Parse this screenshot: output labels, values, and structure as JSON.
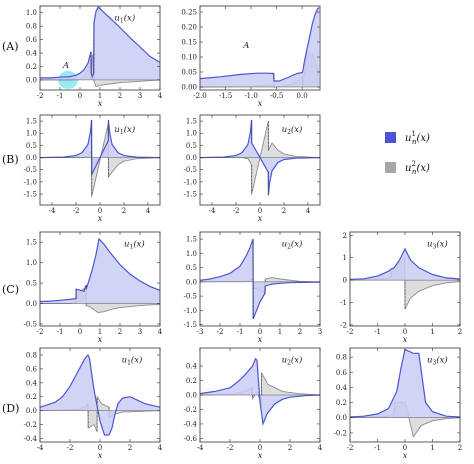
{
  "colors": {
    "blue_line": "#4b55d6",
    "blue_fill": "#c9cdf2",
    "gray_line": "#8c8c8c",
    "gray_fill": "#d9d9d9",
    "highlight": "#86e8f0"
  },
  "row_labels": [
    "(A)",
    "(B)",
    "(C)",
    "(D)"
  ],
  "legend": {
    "items": [
      {
        "label": "u_n^1(x)",
        "main": "u",
        "sup": "1",
        "sub": "n",
        "tail": "(x)",
        "color": "#4b55d6"
      },
      {
        "label": "u_n^2(x)",
        "main": "u",
        "sup": "2",
        "sub": "n",
        "tail": "(x)",
        "color": "#a6a6a6"
      }
    ]
  },
  "chart_data": [
    {
      "id": "A1",
      "type": "area",
      "label": "u1(x)",
      "annotation": "A",
      "xlabel": "x",
      "xlim": [
        -2,
        4
      ],
      "ylim": [
        -0.15,
        1.1
      ],
      "xticks": [
        -2,
        -1,
        0,
        1,
        2,
        3,
        4
      ],
      "yticks": [
        0.0,
        0.2,
        0.4,
        0.6,
        0.8,
        1.0
      ],
      "ytick_labels": [
        "0.0",
        "0.2",
        "0.4",
        "0.6",
        "0.8",
        "1.0"
      ],
      "highlight": {
        "x": -0.6,
        "y": 0.0,
        "label": "A"
      },
      "series": [
        {
          "name": "u_n^1(x)",
          "x": [
            -2,
            -1.5,
            -1,
            -0.5,
            -0.2,
            0,
            0.2,
            0.4,
            0.55,
            0.56,
            0.62,
            0.68,
            0.7,
            0.8,
            0.9,
            1.0,
            1.5,
            2,
            2.5,
            3,
            3.5,
            4
          ],
          "y": [
            0.03,
            0.03,
            0.04,
            0.05,
            0.07,
            0.1,
            0.15,
            0.25,
            0.42,
            0.1,
            0.05,
            0.1,
            0.85,
            1.02,
            1.08,
            1.06,
            0.92,
            0.78,
            0.63,
            0.49,
            0.35,
            0.26
          ]
        },
        {
          "name": "u_n^2(x)",
          "x": [
            -2,
            -0.5,
            0,
            0.2,
            0.4,
            0.55,
            0.56,
            0.62,
            0.68,
            0.7,
            0.8,
            1.0,
            1.5,
            2,
            3,
            4
          ],
          "y": [
            0,
            0,
            0.01,
            0.05,
            0.15,
            0.3,
            0.0,
            0.35,
            0.4,
            -0.02,
            -0.1,
            -0.08,
            -0.06,
            -0.04,
            -0.02,
            0
          ]
        }
      ]
    },
    {
      "id": "A2",
      "type": "area",
      "label": "",
      "annotation": "A",
      "xlabel": "x",
      "xlim": [
        -2,
        0.35
      ],
      "ylim": [
        -0.01,
        0.27
      ],
      "xticks": [
        -2.0,
        -1.5,
        -1.0,
        -0.5,
        0.0
      ],
      "xtick_labels": [
        "-2.0",
        "-1.5",
        "-1.0",
        "-0.5",
        "0.0"
      ],
      "yticks": [
        0,
        0.05,
        0.1,
        0.15,
        0.2,
        0.25
      ],
      "ytick_labels": [
        "0.00",
        "0.05",
        "0.10",
        "0.15",
        "0.20",
        "0.25"
      ],
      "series": [
        {
          "name": "u_n^1(x)",
          "x": [
            -2,
            -1.6,
            -1.2,
            -0.9,
            -0.7,
            -0.56,
            -0.55,
            -0.45,
            -0.3,
            -0.1,
            0.0,
            0.01,
            0.05,
            0.1,
            0.15,
            0.2,
            0.25,
            0.3,
            0.33
          ],
          "y": [
            0.028,
            0.034,
            0.042,
            0.046,
            0.046,
            0.045,
            0.02,
            0.02,
            0.03,
            0.045,
            0.048,
            0.05,
            0.09,
            0.13,
            0.17,
            0.21,
            0.24,
            0.26,
            0.265
          ]
        },
        {
          "name": "u_n^2(x)",
          "x": [
            -2,
            -1.0,
            -0.7,
            -0.56,
            -0.55,
            -0.3,
            -0.1,
            0.0,
            0.01,
            0.1,
            0.2,
            0.3,
            0.33
          ],
          "y": [
            0,
            0.002,
            0.005,
            0.008,
            0.0,
            0.005,
            0.015,
            0.035,
            0.0,
            0.12,
            0.11,
            0.06,
            0.05
          ]
        }
      ]
    },
    {
      "id": "B1",
      "type": "area",
      "label": "u1(x)",
      "xlabel": "x",
      "xlim": [
        -5,
        5
      ],
      "ylim": [
        -1.95,
        1.75
      ],
      "xticks": [
        -4,
        -2,
        0,
        2,
        4
      ],
      "yticks": [
        -1.5,
        -1.0,
        -0.5,
        0.0,
        0.5,
        1.0,
        1.5
      ],
      "ytick_labels": [
        "-1.5",
        "-1.0",
        "-0.5",
        "0.0",
        "0.5",
        "1.0",
        "1.5"
      ],
      "series": [
        {
          "name": "u_n^1(x)",
          "x": [
            -5,
            -3,
            -2,
            -1.5,
            -1,
            -0.8,
            -0.7,
            -0.69,
            0.69,
            0.7,
            0.8,
            1.0,
            1.5,
            2,
            3,
            5
          ],
          "y": [
            0,
            0.02,
            0.08,
            0.2,
            0.55,
            1.05,
            1.55,
            -0.7,
            0.7,
            1.55,
            1.05,
            0.55,
            0.2,
            0.08,
            0.02,
            0
          ]
        },
        {
          "name": "u_n^2(x)",
          "x": [
            -5,
            -1.5,
            -1.0,
            -0.7,
            -0.69,
            0.69,
            0.7,
            1.0,
            1.5,
            2,
            3,
            5
          ],
          "y": [
            0,
            0,
            0.05,
            0.3,
            -1.6,
            1.4,
            -0.8,
            -0.6,
            -0.3,
            -0.15,
            -0.05,
            0
          ]
        }
      ]
    },
    {
      "id": "B2",
      "type": "area",
      "label": "u2(x)",
      "xlabel": "x",
      "xlim": [
        -5,
        5
      ],
      "ylim": [
        -1.95,
        1.75
      ],
      "xticks": [
        -4,
        -2,
        0,
        2,
        4
      ],
      "yticks": [
        -1.5,
        -1.0,
        -0.5,
        0.0,
        0.5,
        1.0,
        1.5
      ],
      "ytick_labels": [
        "-1.5",
        "-1.0",
        "-0.5",
        "0.0",
        "0.5",
        "1.0",
        "1.5"
      ],
      "series": [
        {
          "name": "u_n^1(x)",
          "x": [
            -5,
            -3,
            -2,
            -1.5,
            -1,
            -0.8,
            -0.7,
            -0.69,
            0,
            0.69,
            0.7,
            0.8,
            1.0,
            1.5,
            2,
            3,
            5
          ],
          "y": [
            0,
            0.02,
            0.08,
            0.2,
            0.55,
            1.05,
            1.55,
            0.6,
            0,
            -0.6,
            -1.55,
            -1.05,
            -0.55,
            -0.2,
            -0.08,
            -0.02,
            0
          ]
        },
        {
          "name": "u_n^2(x)",
          "x": [
            -5,
            -1.5,
            -1.0,
            -0.7,
            -0.69,
            0,
            0.69,
            0.7,
            1.0,
            1.5,
            2,
            3,
            5
          ],
          "y": [
            0,
            0,
            -0.05,
            -0.3,
            -1.5,
            0,
            1.5,
            0.3,
            0.6,
            0.3,
            0.15,
            0.05,
            0
          ]
        }
      ]
    },
    {
      "id": "C1",
      "type": "area",
      "label": "u1(x)",
      "xlabel": "x",
      "xlim": [
        -2,
        4
      ],
      "ylim": [
        -0.55,
        1.75
      ],
      "xticks": [
        -2,
        -1,
        0,
        1,
        2,
        3,
        4
      ],
      "yticks": [
        -0.5,
        0.0,
        0.5,
        1.0,
        1.5
      ],
      "ytick_labels": [
        "-0.5",
        "0.0",
        "0.5",
        "1.0",
        "1.5"
      ],
      "series": [
        {
          "name": "u_n^1(x)",
          "x": [
            -2,
            -1.5,
            -1,
            -0.5,
            -0.2,
            -0.19,
            0.2,
            0.3,
            0.31,
            0.6,
            0.8,
            0.95,
            1.2,
            1.5,
            2,
            2.5,
            3,
            3.5,
            4
          ],
          "y": [
            0.05,
            0.06,
            0.08,
            0.1,
            0.12,
            0.35,
            0.3,
            0.45,
            0.35,
            0.8,
            1.2,
            1.58,
            1.45,
            1.25,
            0.95,
            0.72,
            0.55,
            0.42,
            0.32
          ]
        },
        {
          "name": "u_n^2(x)",
          "x": [
            -2,
            -0.5,
            -0.2,
            -0.19,
            0.0,
            0.3,
            0.31,
            0.5,
            0.7,
            0.9,
            1.2,
            1.6,
            2,
            3,
            4
          ],
          "y": [
            0,
            0,
            0.02,
            0.15,
            0.3,
            0.4,
            -0.05,
            -0.08,
            -0.15,
            -0.22,
            -0.2,
            -0.14,
            -0.1,
            -0.05,
            -0.02
          ]
        }
      ]
    },
    {
      "id": "C2",
      "type": "area",
      "label": "u2(x)",
      "xlabel": "x",
      "xlim": [
        -3,
        3
      ],
      "ylim": [
        -1.55,
        1.75
      ],
      "xticks": [
        -3,
        -2,
        -1,
        0,
        1,
        2,
        3
      ],
      "yticks": [
        -1.5,
        -1.0,
        -0.5,
        0.0,
        0.5,
        1.0,
        1.5
      ],
      "ytick_labels": [
        "-1.5",
        "-1.0",
        "-0.5",
        "0.0",
        "0.5",
        "1.0",
        "1.5"
      ],
      "series": [
        {
          "name": "u_n^1(x)",
          "x": [
            -3,
            -2.5,
            -2,
            -1.5,
            -1.0,
            -0.7,
            -0.5,
            -0.35,
            -0.34,
            0,
            0.25,
            0.26,
            0.6,
            1,
            1.5,
            2,
            3
          ],
          "y": [
            0.05,
            0.1,
            0.18,
            0.3,
            0.55,
            0.9,
            1.2,
            1.5,
            -1.3,
            -0.7,
            -0.4,
            -0.15,
            -0.08,
            -0.05,
            -0.03,
            -0.02,
            -0.01
          ]
        },
        {
          "name": "u_n^2(x)",
          "x": [
            -3,
            -1.0,
            -0.5,
            -0.35,
            -0.34,
            0,
            0.25,
            0.26,
            0.6,
            1,
            2,
            3
          ],
          "y": [
            0,
            0.01,
            0.05,
            0.1,
            -0.2,
            -0.3,
            -0.4,
            0.1,
            0.15,
            0.1,
            0.02,
            0
          ]
        }
      ]
    },
    {
      "id": "C3",
      "type": "area",
      "label": "u3(x)",
      "xlabel": "x",
      "xlim": [
        -2,
        2
      ],
      "ylim": [
        -2.05,
        2.15
      ],
      "xticks": [
        -2,
        -1,
        0,
        1,
        2
      ],
      "yticks": [
        -2,
        -1,
        0,
        1,
        2
      ],
      "ytick_labels": [
        "-2",
        "-1",
        "0",
        "1",
        "2"
      ],
      "series": [
        {
          "name": "u_n^1(x)",
          "x": [
            -2,
            -1.5,
            -1.0,
            -0.6,
            -0.5,
            -0.4,
            -0.2,
            0,
            0.2,
            0.5,
            1,
            1.5,
            2
          ],
          "y": [
            0.03,
            0.06,
            0.18,
            0.4,
            0.5,
            0.55,
            0.9,
            1.4,
            0.9,
            0.55,
            0.25,
            0.1,
            0.05
          ]
        },
        {
          "name": "u_n^2(x)",
          "x": [
            -2,
            -1.0,
            -0.6,
            -0.5,
            -0.49,
            -0.2,
            -0.01,
            0,
            0.2,
            0.5,
            1,
            1.5,
            2
          ],
          "y": [
            0,
            0.05,
            0.1,
            0.15,
            0.4,
            0.8,
            1.0,
            -1.3,
            -0.8,
            -0.5,
            -0.25,
            -0.12,
            -0.06
          ]
        }
      ]
    },
    {
      "id": "D1",
      "type": "area",
      "label": "u1(x)",
      "xlabel": "x",
      "xlim": [
        -4,
        4
      ],
      "ylim": [
        -0.45,
        0.9
      ],
      "xticks": [
        -4,
        -2,
        0,
        2,
        4
      ],
      "yticks": [
        -0.4,
        -0.2,
        0.0,
        0.2,
        0.4,
        0.6,
        0.8
      ],
      "ytick_labels": [
        "-0.4",
        "-0.2",
        "0.0",
        "0.2",
        "0.4",
        "0.6",
        "0.8"
      ],
      "series": [
        {
          "name": "u_n^1(x)",
          "x": [
            -4,
            -3,
            -2.5,
            -2,
            -1.5,
            -1.0,
            -0.8,
            -0.7,
            -0.4,
            0,
            0.3,
            0.6,
            0.8,
            1.0,
            1.2,
            1.5,
            2,
            2.5,
            3,
            4
          ],
          "y": [
            0.05,
            0.12,
            0.2,
            0.35,
            0.55,
            0.75,
            0.8,
            0.75,
            0.3,
            -0.15,
            -0.35,
            -0.35,
            -0.25,
            -0.05,
            0.1,
            0.18,
            0.2,
            0.15,
            0.1,
            0.05
          ]
        },
        {
          "name": "u_n^2(x)",
          "x": [
            -4,
            -1.5,
            -1.0,
            -0.8,
            -0.79,
            -0.4,
            -0.2,
            -0.19,
            0.1,
            0.6,
            0.61,
            1.0,
            1.5,
            2.5,
            4
          ],
          "y": [
            0,
            0.02,
            0.05,
            0.1,
            -0.25,
            -0.2,
            -0.3,
            0.2,
            0.1,
            0.05,
            -0.1,
            -0.05,
            -0.02,
            -0.01,
            0
          ]
        }
      ]
    },
    {
      "id": "D2",
      "type": "area",
      "label": "u2(x)",
      "xlabel": "x",
      "xlim": [
        -4,
        4
      ],
      "ylim": [
        -0.65,
        0.65
      ],
      "xticks": [
        -4,
        -2,
        0,
        2,
        4
      ],
      "yticks": [
        -0.6,
        -0.4,
        -0.2,
        0.0,
        0.2,
        0.4
      ],
      "ytick_labels": [
        "-0.6",
        "-0.4",
        "-0.2",
        "0.0",
        "0.2",
        "0.4"
      ],
      "series": [
        {
          "name": "u_n^1(x)",
          "x": [
            -4,
            -3,
            -2,
            -1.5,
            -1.0,
            -0.5,
            -0.3,
            -0.2,
            0,
            0.2,
            0.5,
            1.0,
            1.5,
            2,
            3,
            4
          ],
          "y": [
            0.02,
            0.05,
            0.1,
            0.18,
            0.28,
            0.4,
            0.5,
            0.48,
            -0.1,
            -0.4,
            -0.25,
            -0.12,
            -0.06,
            -0.03,
            -0.01,
            0
          ]
        },
        {
          "name": "u_n^2(x)",
          "x": [
            -4,
            -2,
            -1,
            -0.5,
            -0.49,
            -0.2,
            0.1,
            0.11,
            0.4,
            0.5,
            1.0,
            1.5,
            2.5,
            4
          ],
          "y": [
            0,
            0.01,
            0.05,
            0.1,
            -0.05,
            0.05,
            -0.15,
            0.3,
            0.2,
            0.15,
            0.1,
            0.05,
            0.02,
            0
          ]
        }
      ]
    },
    {
      "id": "D3",
      "type": "area",
      "label": "u3(x)",
      "xlabel": "x",
      "xlim": [
        -2,
        2
      ],
      "ylim": [
        -0.32,
        0.92
      ],
      "xticks": [
        -2,
        -1,
        0,
        1,
        2
      ],
      "yticks": [
        -0.2,
        0.0,
        0.2,
        0.4,
        0.6,
        0.8
      ],
      "ytick_labels": [
        "-0.2",
        "0.0",
        "0.2",
        "0.4",
        "0.6",
        "0.8"
      ],
      "series": [
        {
          "name": "u_n^1(x)",
          "x": [
            -2,
            -1.5,
            -1.0,
            -0.6,
            -0.3,
            -0.15,
            0,
            0.3,
            0.5,
            0.75,
            1.0,
            1.5,
            2
          ],
          "y": [
            0.01,
            0.02,
            0.05,
            0.12,
            0.35,
            0.65,
            0.9,
            0.85,
            0.85,
            0.2,
            0.08,
            0.02,
            0.01
          ]
        },
        {
          "name": "u_n^2(x)",
          "x": [
            -2,
            -0.6,
            -0.4,
            -0.39,
            0,
            0.01,
            0.3,
            0.6,
            1.0,
            1.5,
            2
          ],
          "y": [
            0,
            0.02,
            0.05,
            0.2,
            0.2,
            0.2,
            -0.25,
            -0.1,
            -0.04,
            -0.01,
            0
          ]
        }
      ]
    }
  ]
}
